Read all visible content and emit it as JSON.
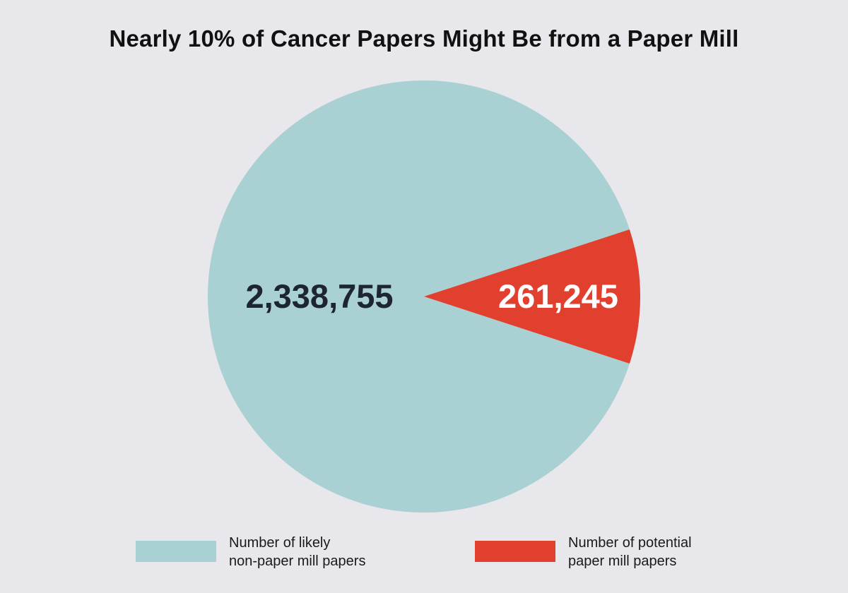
{
  "chart_data": {
    "type": "pie",
    "title": "Nearly 10% of Cancer Papers Might Be from a Paper Mill",
    "slices": [
      {
        "label": "Number of likely non-paper mill papers",
        "value": 2338755,
        "value_label": "2,338,755",
        "color": "#a9d0d2",
        "label_color": "#1d2433"
      },
      {
        "label": "Number of potential paper mill papers",
        "value": 261245,
        "value_label": "261,245",
        "color": "#e2402e",
        "label_color": "#ffffff"
      }
    ],
    "legend": {
      "placement": "bottom",
      "items": [
        {
          "line1": "Number of likely",
          "line2": "non-paper mill papers",
          "color": "#a9d0d2"
        },
        {
          "line1": "Number of potential",
          "line2": "paper mill papers",
          "color": "#e2402e"
        }
      ]
    },
    "background": "#e8e7eb"
  }
}
